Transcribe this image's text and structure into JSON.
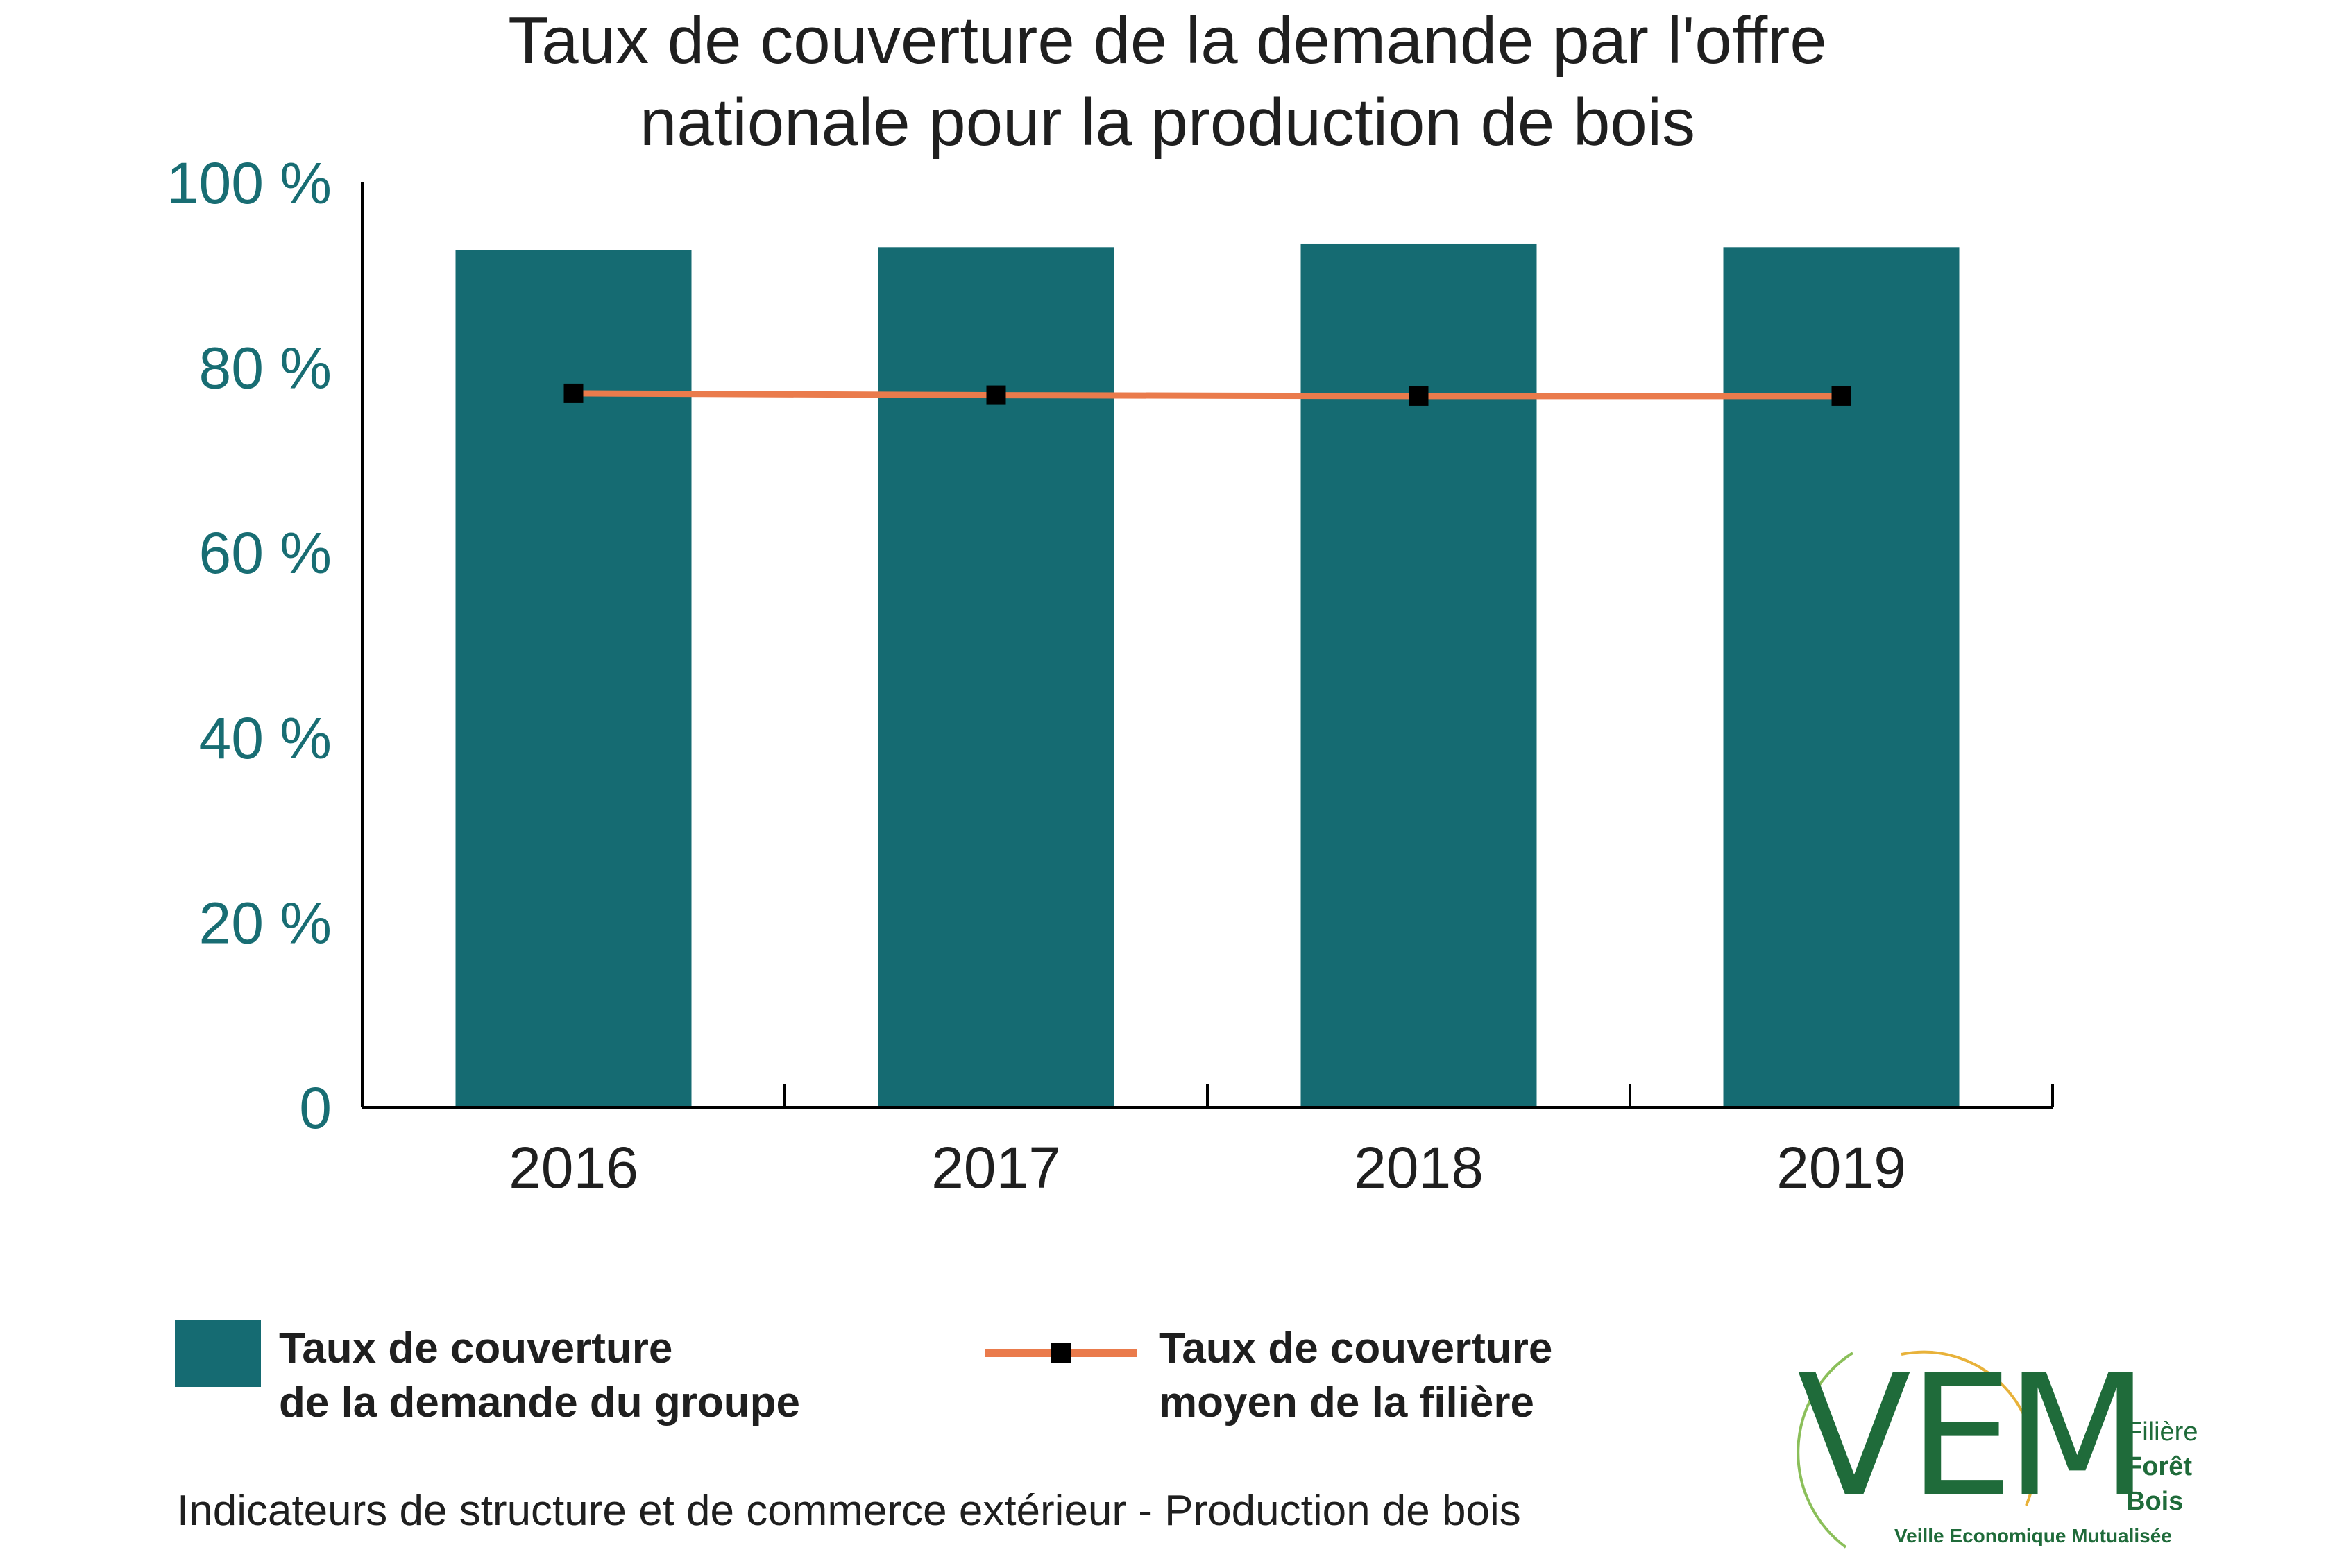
{
  "chart_data": {
    "type": "bar",
    "title_lines": [
      "Taux de couverture de la demande par l'offre",
      "nationale pour la production de bois"
    ],
    "categories": [
      "2016",
      "2017",
      "2018",
      "2019"
    ],
    "series": [
      {
        "name": "Taux de couverture de la demande du groupe",
        "type": "bar",
        "values": [
          92.7,
          93.0,
          93.4,
          93.0
        ],
        "color": "#156b72"
      },
      {
        "name": "Taux de couverture moyen de la filière",
        "type": "line",
        "values": [
          77.2,
          77.0,
          76.9,
          76.9
        ],
        "color": "#ea7b4c",
        "marker_color": "#000000"
      }
    ],
    "y_ticks": [
      "0",
      "20 %",
      "40 %",
      "60 %",
      "80 %",
      "100 %"
    ],
    "ylim": [
      0,
      100
    ],
    "grid": false,
    "legend_position": "bottom"
  },
  "legend": {
    "bar_label_lines": [
      "Taux de couverture",
      "de la demande du groupe"
    ],
    "line_label_lines": [
      "Taux de couverture",
      "moyen de la filière"
    ]
  },
  "footer": "Indicateurs de structure et de commerce extérieur - Production de bois",
  "logo": {
    "letters": [
      "V",
      "E",
      "M"
    ],
    "side_lines": [
      "Filière",
      "Forêt",
      "Bois"
    ],
    "tagline": "Veille Economique Mutualisée",
    "color": "#1f6b3a",
    "accent_color": "#e8b23a"
  }
}
